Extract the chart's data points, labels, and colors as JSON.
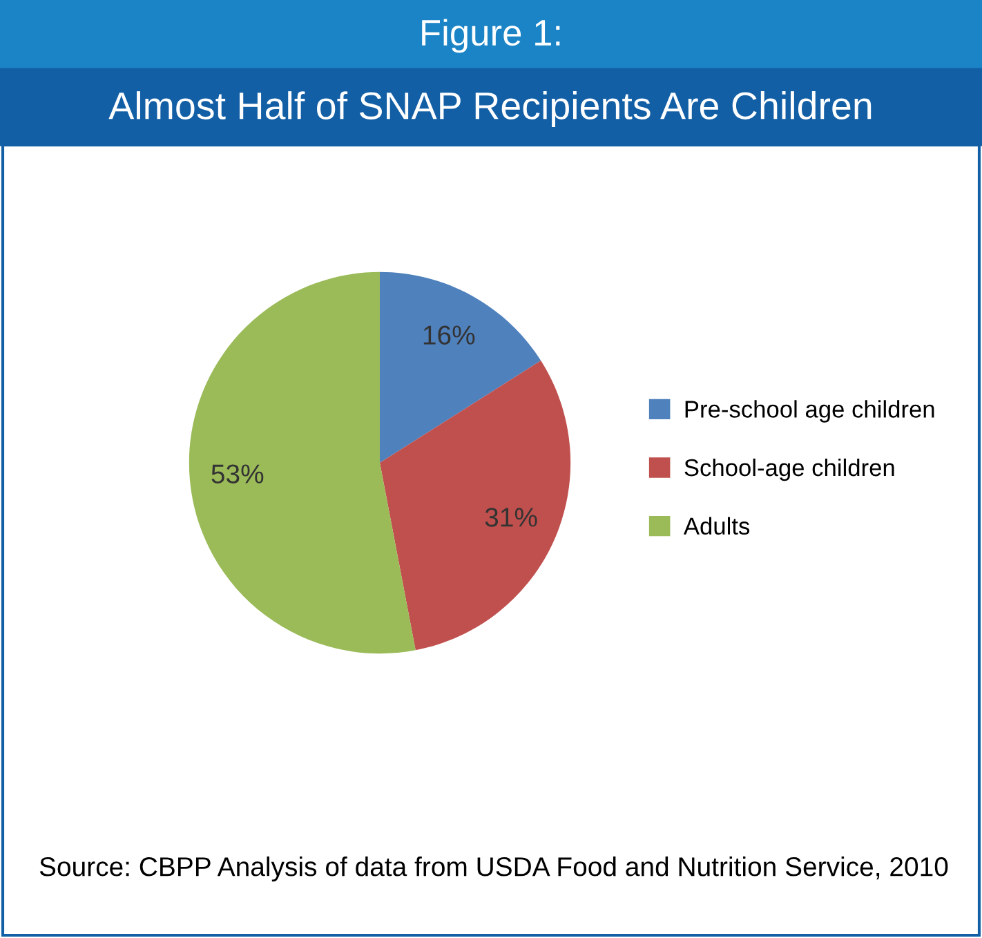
{
  "chart_data": {
    "type": "pie",
    "subtitle": "Figure 1:",
    "title": "Almost Half of SNAP Recipients Are Children",
    "categories": [
      "Pre-school age children",
      "School-age children",
      "Adults"
    ],
    "values": [
      16,
      31,
      53
    ],
    "colors": [
      "#4f81bd",
      "#c0504d",
      "#9bbb59"
    ],
    "value_labels": [
      "16%",
      "31%",
      "53%"
    ],
    "legend": "right",
    "annotations": [
      "Source: CBPP Analysis of data from USDA Food and Nutrition Service, 2010"
    ]
  }
}
